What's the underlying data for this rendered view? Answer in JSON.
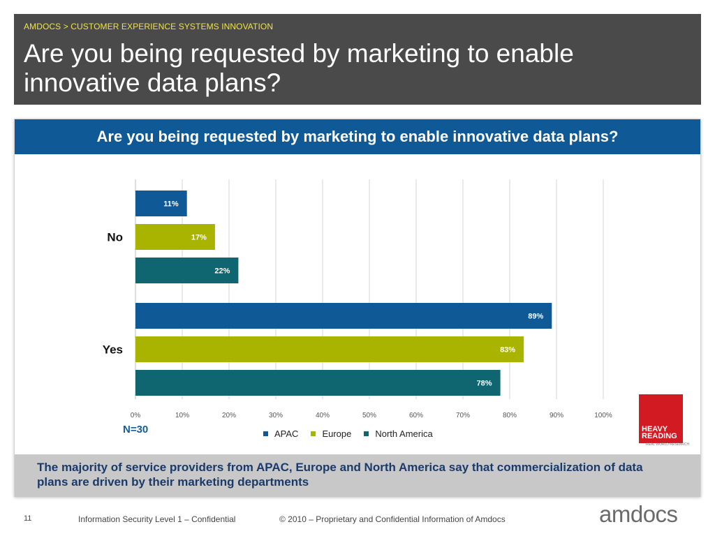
{
  "header": {
    "breadcrumb": "AMDOCS > CUSTOMER EXPERIENCE SYSTEMS INNOVATION",
    "title": "Are you being requested by marketing to enable innovative data plans?"
  },
  "colors": {
    "header_bg": "#4a4a4a",
    "breadcrumb": "#f0e442",
    "panel_title_bg": "#0f5a96",
    "apac": "#0f5a96",
    "europe": "#a8b400",
    "north_america": "#0f6670"
  },
  "panel": {
    "title": "Are you being requested by marketing to enable innovative data plans?",
    "n_label": "N=30",
    "summary": "The majority of service providers from APAC, Europe and North America  say that commercialization of data plans are driven by their marketing departments"
  },
  "chart_data": {
    "type": "bar",
    "orientation": "horizontal",
    "categories": [
      "No",
      "Yes"
    ],
    "series": [
      {
        "name": "APAC",
        "values": [
          11,
          89
        ],
        "labels": [
          "11%",
          "89%"
        ]
      },
      {
        "name": "Europe",
        "values": [
          17,
          83
        ],
        "labels": [
          "17%",
          "83%"
        ]
      },
      {
        "name": "North America",
        "values": [
          22,
          78
        ],
        "labels": [
          "22%",
          "78%"
        ]
      }
    ],
    "xlim": [
      0,
      100
    ],
    "x_ticks": [
      0,
      10,
      20,
      30,
      40,
      50,
      60,
      70,
      80,
      90,
      100
    ],
    "x_tick_labels": [
      "0%",
      "10%",
      "20%",
      "30%",
      "40%",
      "50%",
      "60%",
      "70%",
      "80%",
      "90%",
      "100%"
    ],
    "grid": true,
    "legend": "bottom"
  },
  "logo": {
    "line1": "HEAVY",
    "line2": "READING",
    "tagline": "REAL WORLD RESEARCH"
  },
  "footer": {
    "page_number": "11",
    "confidential": "Information Security Level 1 – Confidential",
    "copyright": "© 2010 – Proprietary and Confidential Information of Amdocs",
    "brand": "amdocs"
  }
}
